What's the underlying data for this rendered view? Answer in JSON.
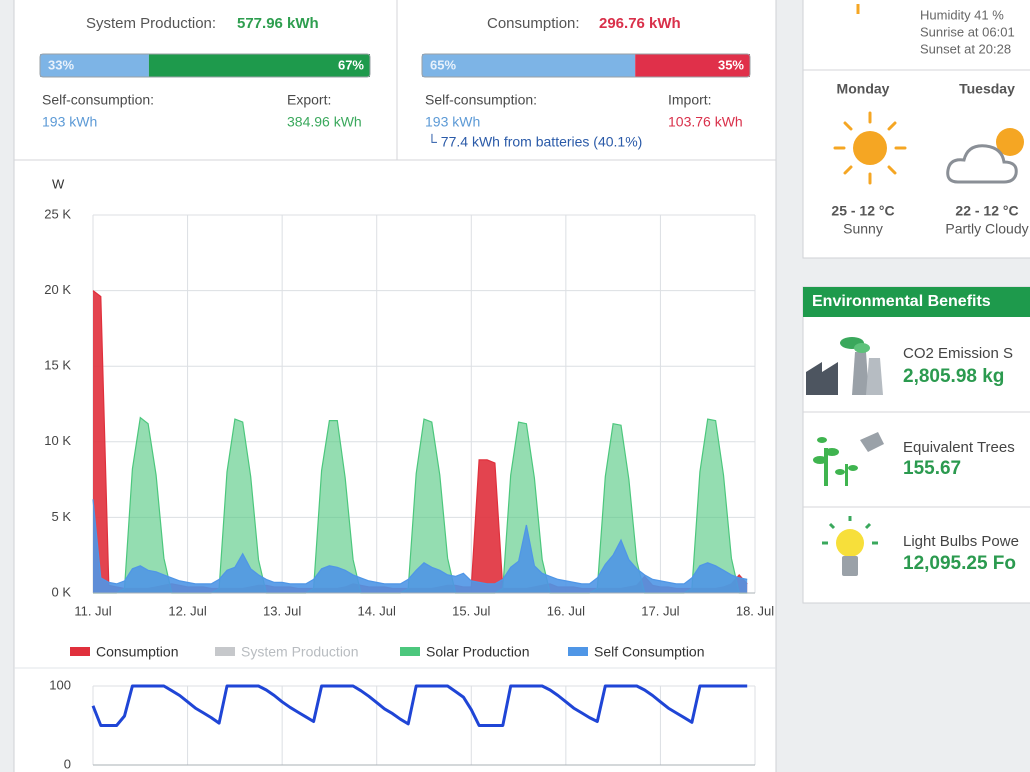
{
  "production": {
    "label": "System Production:",
    "value": "577.96 kWh",
    "split": [
      {
        "value": 33,
        "label": "33%"
      },
      {
        "value": 67,
        "label": "67%"
      }
    ],
    "left_label": "Self-consumption:",
    "left_value": "193 kWh",
    "right_label": "Export:",
    "right_value": "384.96 kWh"
  },
  "consumption": {
    "label": "Consumption:",
    "value": "296.76 kWh",
    "split": [
      {
        "value": 65,
        "label": "65%"
      },
      {
        "value": 35,
        "label": "35%"
      }
    ],
    "left_label": "Self-consumption:",
    "left_value": "193 kWh",
    "right_label": "Import:",
    "right_value": "103.76 kWh",
    "note": "└ 77.4 kWh from batteries (40.1%)"
  },
  "weather": {
    "humidity": "Humidity 41 %",
    "sunrise": "Sunrise at 06:01",
    "sunset": "Sunset at 20:28",
    "forecast": [
      {
        "day": "Monday",
        "temp": "25 - 12 °C",
        "sky": "Sunny"
      },
      {
        "day": "Tuesday",
        "temp": "22 - 12 °C",
        "sky": "Partly Cloudy"
      }
    ]
  },
  "benefits": {
    "title": "Environmental Benefits",
    "items": [
      {
        "label": "CO2 Emission S",
        "value": "2,805.98 kg"
      },
      {
        "label": "Equivalent Trees",
        "value": "155.67"
      },
      {
        "label": "Light Bulbs Powe",
        "value": "12,095.25 Fo"
      }
    ]
  },
  "chart_data": [
    {
      "type": "area",
      "ylabel": "W",
      "x": [
        11,
        11.083,
        11.167,
        11.25,
        11.333,
        11.417,
        11.5,
        11.583,
        11.667,
        11.75,
        11.833,
        11.917,
        12,
        12.083,
        12.167,
        12.25,
        12.333,
        12.417,
        12.5,
        12.583,
        12.667,
        12.75,
        12.833,
        12.917,
        13,
        13.083,
        13.167,
        13.25,
        13.333,
        13.417,
        13.5,
        13.583,
        13.667,
        13.75,
        13.833,
        13.917,
        14,
        14.083,
        14.167,
        14.25,
        14.333,
        14.417,
        14.5,
        14.583,
        14.667,
        14.75,
        14.833,
        14.917,
        15,
        15.083,
        15.167,
        15.25,
        15.333,
        15.417,
        15.5,
        15.583,
        15.667,
        15.75,
        15.833,
        15.917,
        16,
        16.083,
        16.167,
        16.25,
        16.333,
        16.417,
        16.5,
        16.583,
        16.667,
        16.75,
        16.833,
        16.917,
        17,
        17.083,
        17.167,
        17.25,
        17.333,
        17.417,
        17.5,
        17.583,
        17.667,
        17.75,
        17.833,
        17.917
      ],
      "xlim": [
        11,
        18
      ],
      "xticks": [
        {
          "value": 11,
          "label": "11. Jul"
        },
        {
          "value": 12,
          "label": "12. Jul"
        },
        {
          "value": 13,
          "label": "13. Jul"
        },
        {
          "value": 14,
          "label": "14. Jul"
        },
        {
          "value": 15,
          "label": "15. Jul"
        },
        {
          "value": 16,
          "label": "16. Jul"
        },
        {
          "value": 17,
          "label": "17. Jul"
        },
        {
          "value": 18,
          "label": "18. Jul"
        }
      ],
      "ylim": [
        0,
        25000
      ],
      "yticks": [
        {
          "value": 0,
          "label": "0 K"
        },
        {
          "value": 5000,
          "label": "5 K"
        },
        {
          "value": 10000,
          "label": "10 K"
        },
        {
          "value": 15000,
          "label": "15 K"
        },
        {
          "value": 20000,
          "label": "20 K"
        },
        {
          "value": 25000,
          "label": "25 K"
        }
      ],
      "grid": true,
      "series": [
        {
          "name": "Consumption",
          "color": "#e0303c",
          "values": [
            20000,
            19600,
            500,
            400,
            300,
            300,
            300,
            300,
            400,
            500,
            600,
            500,
            400,
            400,
            400,
            300,
            300,
            300,
            300,
            300,
            400,
            500,
            500,
            400,
            400,
            400,
            300,
            300,
            300,
            300,
            300,
            300,
            400,
            600,
            500,
            400,
            400,
            400,
            300,
            300,
            300,
            300,
            300,
            300,
            400,
            500,
            500,
            400,
            400,
            8800,
            8800,
            8600,
            300,
            300,
            300,
            300,
            400,
            500,
            600,
            400,
            400,
            400,
            300,
            300,
            300,
            300,
            300,
            300,
            400,
            500,
            1100,
            500,
            400,
            400,
            300,
            300,
            300,
            300,
            300,
            300,
            400,
            600,
            1200,
            600
          ]
        },
        {
          "name": "System Production",
          "color": "#a0a4a8",
          "visible": false
        },
        {
          "name": "Solar Production",
          "color": "#4cc77d",
          "values": [
            0,
            0,
            0,
            0,
            300,
            8200,
            11600,
            11200,
            7800,
            2300,
            0,
            0,
            0,
            0,
            0,
            0,
            300,
            8000,
            11500,
            11300,
            7700,
            2200,
            0,
            0,
            0,
            0,
            0,
            0,
            300,
            8100,
            11400,
            11400,
            7600,
            2200,
            0,
            0,
            0,
            0,
            0,
            0,
            300,
            7900,
            11500,
            11300,
            7800,
            2300,
            0,
            0,
            0,
            0,
            0,
            0,
            300,
            7800,
            11300,
            11200,
            7600,
            2200,
            0,
            0,
            0,
            0,
            0,
            0,
            300,
            7700,
            11200,
            11100,
            7500,
            2100,
            0,
            0,
            0,
            0,
            0,
            0,
            300,
            8000,
            11500,
            11400,
            7800,
            2300,
            0,
            0
          ]
        },
        {
          "name": "Self Consumption",
          "color": "#4f96e6",
          "values": [
            6200,
            1000,
            700,
            600,
            800,
            1600,
            1800,
            1500,
            1400,
            1200,
            1000,
            800,
            700,
            600,
            600,
            600,
            900,
            1500,
            1700,
            2600,
            1600,
            1200,
            900,
            700,
            700,
            600,
            600,
            600,
            900,
            1600,
            1800,
            1700,
            1500,
            1200,
            1000,
            800,
            700,
            600,
            600,
            600,
            900,
            1500,
            2000,
            1700,
            1500,
            1200,
            1100,
            1300,
            800,
            700,
            600,
            600,
            900,
            1700,
            2100,
            4500,
            1800,
            1300,
            1100,
            900,
            800,
            700,
            600,
            600,
            1000,
            1900,
            2500,
            3500,
            2200,
            1600,
            1200,
            900,
            800,
            700,
            600,
            600,
            1000,
            1800,
            2000,
            1800,
            1500,
            1200,
            1000,
            900
          ]
        }
      ]
    },
    {
      "type": "line",
      "color": "#1f45d6",
      "x": [
        11,
        11.083,
        11.167,
        11.25,
        11.333,
        11.417,
        11.5,
        11.583,
        11.667,
        11.75,
        11.833,
        11.917,
        12,
        12.083,
        12.167,
        12.25,
        12.333,
        12.417,
        12.5,
        12.583,
        12.667,
        12.75,
        12.833,
        12.917,
        13,
        13.083,
        13.167,
        13.25,
        13.333,
        13.417,
        13.5,
        13.583,
        13.667,
        13.75,
        13.833,
        13.917,
        14,
        14.083,
        14.167,
        14.25,
        14.333,
        14.417,
        14.5,
        14.583,
        14.667,
        14.75,
        14.833,
        14.917,
        15,
        15.083,
        15.167,
        15.25,
        15.333,
        15.417,
        15.5,
        15.583,
        15.667,
        15.75,
        15.833,
        15.917,
        16,
        16.083,
        16.167,
        16.25,
        16.333,
        16.417,
        16.5,
        16.583,
        16.667,
        16.75,
        16.833,
        16.917,
        17,
        17.083,
        17.167,
        17.25,
        17.333,
        17.417,
        17.5,
        17.583,
        17.667,
        17.75,
        17.833,
        17.917
      ],
      "values": [
        75,
        50,
        50,
        50,
        62,
        100,
        100,
        100,
        100,
        100,
        94,
        88,
        80,
        72,
        66,
        60,
        53,
        100,
        100,
        100,
        100,
        100,
        95,
        88,
        80,
        73,
        67,
        61,
        55,
        100,
        100,
        100,
        100,
        100,
        94,
        87,
        79,
        71,
        65,
        58,
        52,
        100,
        100,
        100,
        100,
        100,
        93,
        86,
        70,
        50,
        50,
        50,
        50,
        100,
        100,
        100,
        100,
        100,
        95,
        88,
        80,
        72,
        66,
        60,
        55,
        100,
        100,
        100,
        100,
        100,
        95,
        88,
        80,
        72,
        66,
        60,
        54,
        100,
        100,
        100,
        100,
        100,
        100,
        100
      ],
      "xlim": [
        11,
        18
      ],
      "xticks": [
        11,
        12,
        13,
        14,
        15,
        16,
        17,
        18
      ],
      "ylim": [
        0,
        100
      ],
      "yticks": [
        0,
        100
      ],
      "grid": true
    }
  ]
}
